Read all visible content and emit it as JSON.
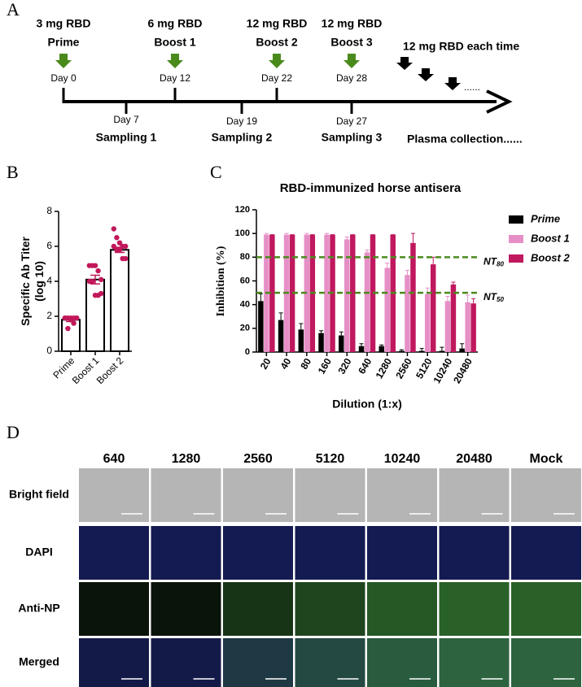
{
  "panel_a": {
    "label": "A",
    "events": [
      {
        "dose": "3 mg RBD",
        "event": "Prime",
        "day": "Day 0"
      },
      {
        "dose": "6 mg RBD",
        "event": "Boost 1",
        "day": "Day 12"
      },
      {
        "dose": "12 mg RBD",
        "event": "Boost 2",
        "day": "Day 22"
      },
      {
        "dose": "12 mg RBD",
        "event": "Boost 3",
        "day": "Day 28"
      }
    ],
    "samplings": [
      {
        "day": "Day 7",
        "name": "Sampling 1"
      },
      {
        "day": "Day 19",
        "name": "Sampling 2"
      },
      {
        "day": "Day 27",
        "name": "Sampling 3"
      }
    ],
    "repeat_note": "12 mg RBD each time",
    "ellipsis": "......",
    "collection": "Plasma collection......"
  },
  "chart_data": [
    {
      "type": "bar_scatter",
      "panel_label": "B",
      "ylabel": [
        "Specific Ab Titer",
        "(log 10)"
      ],
      "categories": [
        "Prime",
        "Boost 1",
        "Boost 2"
      ],
      "values": [
        1.8,
        4.1,
        5.8
      ],
      "errors": [
        0.1,
        0.25,
        0.15
      ],
      "points": [
        [
          1.9,
          1.9,
          1.9,
          1.9,
          1.9,
          1.9,
          1.3,
          1.8,
          1.6,
          1.9
        ],
        [
          4.9,
          4.9,
          4.9,
          4.6,
          4.1,
          4.0,
          4.0,
          3.2,
          3.2,
          3.3
        ],
        [
          7.0,
          6.5,
          6.2,
          6.0,
          6.0,
          6.0,
          5.8,
          5.8,
          5.3,
          5.3
        ]
      ],
      "bar_color": "#ffffff",
      "point_color": "#c2185b",
      "ylim": [
        0,
        8
      ],
      "yticks": [
        0,
        2,
        4,
        6,
        8
      ]
    },
    {
      "type": "grouped_bar",
      "panel_label": "C",
      "title": "RBD-immunized horse antisera",
      "ylabel": "Inhibition (%)",
      "xlabel": "Dilution (1:x)",
      "categories": [
        "20",
        "40",
        "80",
        "160",
        "320",
        "640",
        "1280",
        "2560",
        "5120",
        "10240",
        "20480"
      ],
      "series": [
        {
          "name": "Prime",
          "color": "#000000",
          "values": [
            43,
            27,
            19,
            16,
            14,
            5,
            5,
            1,
            1,
            1,
            3
          ],
          "errors": [
            6,
            6,
            5,
            2,
            3,
            2,
            1,
            1,
            2,
            3,
            4
          ]
        },
        {
          "name": "Boost 1",
          "color": "#e68fc6",
          "values": [
            99,
            99,
            99,
            99,
            95,
            84,
            71,
            65,
            49,
            43,
            42
          ],
          "errors": [
            1,
            1,
            1,
            1,
            2,
            2,
            4,
            4,
            5,
            4,
            6
          ]
        },
        {
          "name": "Boost 2",
          "color": "#c0185f",
          "values": [
            99,
            99,
            99,
            99,
            99,
            99,
            99,
            92,
            74,
            57,
            41
          ],
          "errors": [
            0,
            0,
            0,
            0,
            0,
            0,
            0,
            8,
            6,
            2,
            4
          ]
        }
      ],
      "reference_lines": [
        {
          "value": 80,
          "label": "NT",
          "subscript": "80"
        },
        {
          "value": 50,
          "label": "NT",
          "subscript": "50"
        }
      ],
      "reference_color": "#4a8a1c",
      "ylim": [
        0,
        120
      ],
      "yticks": [
        0,
        20,
        40,
        60,
        80,
        100,
        120
      ]
    }
  ],
  "panel_d": {
    "label": "D",
    "columns": [
      "640",
      "1280",
      "2560",
      "5120",
      "10240",
      "20480",
      "Mock"
    ],
    "rows": [
      "Bright field",
      "DAPI",
      "Anti-NP",
      "Merged"
    ]
  }
}
